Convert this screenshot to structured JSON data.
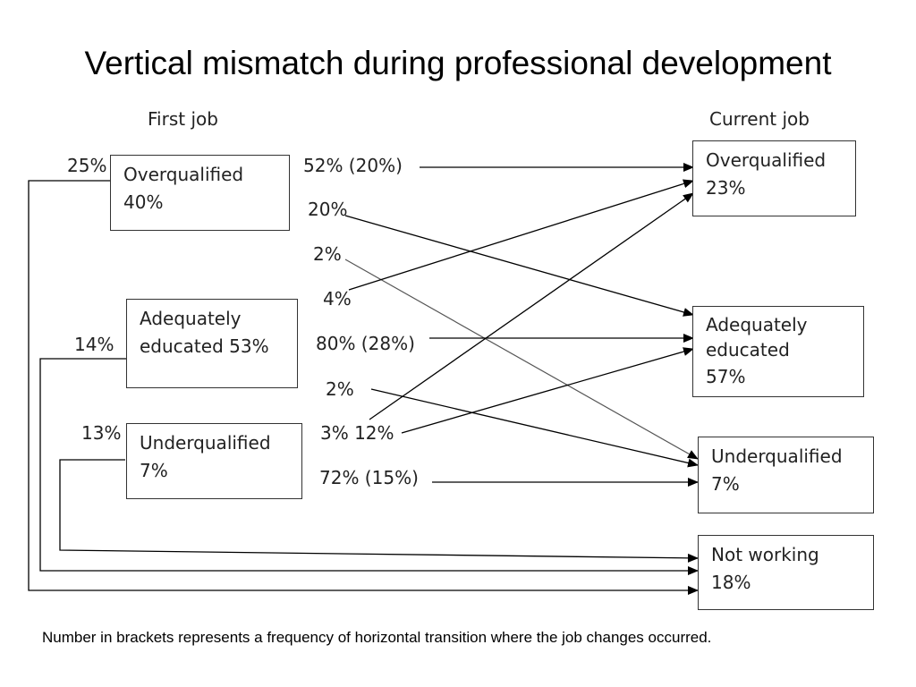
{
  "title": "Vertical mismatch during professional development",
  "headers": {
    "first_job": "First job",
    "current_job": "Current job"
  },
  "first_job_boxes": [
    {
      "id": "overqualified",
      "lines": [
        "Overqualified",
        "40%"
      ],
      "leave_pct": "25%"
    },
    {
      "id": "adequately-educated",
      "lines": [
        "Adequately",
        "educated 53%"
      ],
      "leave_pct": "14%"
    },
    {
      "id": "underqualified",
      "lines": [
        "Underqualified",
        "7%"
      ],
      "leave_pct": "13%"
    }
  ],
  "current_job_boxes": [
    {
      "id": "overqualified",
      "lines": [
        "Overqualified",
        "23%"
      ]
    },
    {
      "id": "adequately-educated",
      "lines": [
        "Adequately",
        "educated",
        "57%"
      ]
    },
    {
      "id": "underqualified",
      "lines": [
        "Underqualified",
        "7%"
      ]
    },
    {
      "id": "not-working",
      "lines": [
        "Not working",
        "18%"
      ]
    }
  ],
  "transition_labels": [
    "52% (20%)",
    "20%",
    "2%",
    "4%",
    "80% (28%)",
    "2%",
    "3% 12%",
    "72% (15%)"
  ],
  "note": "Number in brackets represents a frequency of horizontal transition where the job changes occurred.",
  "colors": {
    "arrow": "#000000",
    "box_border": "#333333",
    "text": "#222222"
  }
}
